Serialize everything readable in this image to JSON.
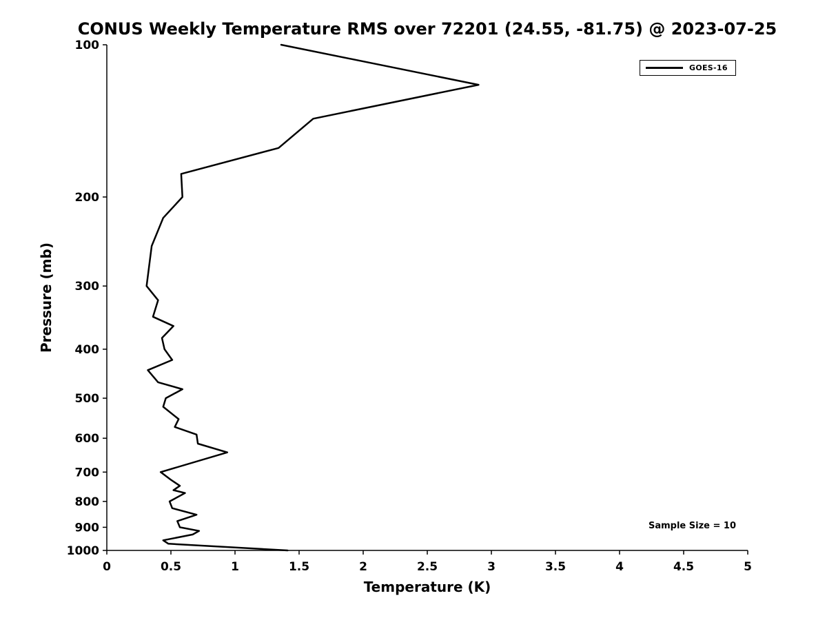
{
  "chart_data": {
    "type": "line",
    "title": "CONUS Weekly Temperature RMS over 72201 (24.55, -81.75) @ 2023-07-25",
    "xlabel": "Temperature (K)",
    "ylabel": "Pressure (mb)",
    "xlim": [
      0,
      5
    ],
    "ylim": [
      100,
      1000
    ],
    "y_scale": "log",
    "y_inverted": true,
    "grid": false,
    "x_ticks": [
      0,
      0.5,
      1,
      1.5,
      2,
      2.5,
      3,
      3.5,
      4,
      4.5,
      5
    ],
    "x_tick_labels": [
      "0",
      "0.5",
      "1",
      "1.5",
      "2",
      "2.5",
      "3",
      "3.5",
      "4",
      "4.5",
      "5"
    ],
    "y_ticks": [
      100,
      200,
      300,
      400,
      500,
      600,
      700,
      800,
      900,
      1000
    ],
    "y_tick_labels": [
      "100",
      "200",
      "300",
      "400",
      "500",
      "600",
      "700",
      "800",
      "900",
      "1000"
    ],
    "legend": {
      "position": "top-right",
      "entries": [
        {
          "label": "GOES-16",
          "color": "#000000"
        }
      ]
    },
    "annotation": "Sample Size = 10",
    "series": [
      {
        "name": "GOES-16",
        "color": "#000000",
        "points_format": "[pressure_mb, temperature_rms_K]",
        "points": [
          [
            100,
            1.36
          ],
          [
            120,
            2.9
          ],
          [
            140,
            1.61
          ],
          [
            160,
            1.34
          ],
          [
            180,
            0.58
          ],
          [
            200,
            0.59
          ],
          [
            220,
            0.44
          ],
          [
            250,
            0.35
          ],
          [
            300,
            0.31
          ],
          [
            320,
            0.4
          ],
          [
            345,
            0.36
          ],
          [
            360,
            0.52
          ],
          [
            380,
            0.43
          ],
          [
            400,
            0.45
          ],
          [
            420,
            0.51
          ],
          [
            440,
            0.32
          ],
          [
            465,
            0.4
          ],
          [
            480,
            0.59
          ],
          [
            500,
            0.46
          ],
          [
            520,
            0.44
          ],
          [
            550,
            0.56
          ],
          [
            570,
            0.53
          ],
          [
            590,
            0.7
          ],
          [
            615,
            0.71
          ],
          [
            640,
            0.94
          ],
          [
            700,
            0.42
          ],
          [
            725,
            0.5
          ],
          [
            745,
            0.57
          ],
          [
            760,
            0.52
          ],
          [
            770,
            0.61
          ],
          [
            800,
            0.49
          ],
          [
            825,
            0.51
          ],
          [
            850,
            0.7
          ],
          [
            875,
            0.55
          ],
          [
            900,
            0.57
          ],
          [
            915,
            0.72
          ],
          [
            930,
            0.67
          ],
          [
            955,
            0.44
          ],
          [
            970,
            0.48
          ],
          [
            1000,
            1.41
          ]
        ]
      }
    ]
  }
}
